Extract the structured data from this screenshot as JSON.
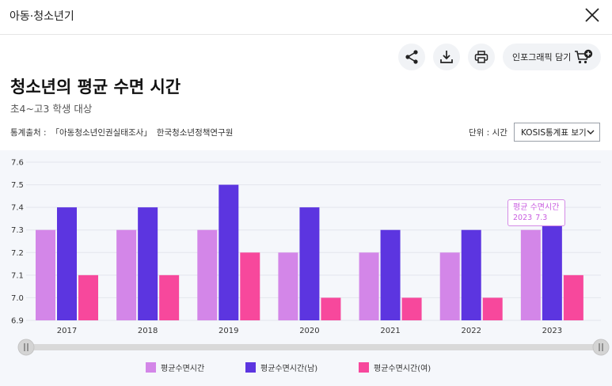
{
  "window": {
    "title": "아동·청소년기"
  },
  "toolbar": {
    "infographic_label": "인포그래픽 담기"
  },
  "page": {
    "title": "청소년의 평균 수면 시간",
    "subtitle": "초4~고3 학생 대상"
  },
  "source": {
    "label": "통계출처 :",
    "survey": "「아동청소년인권실태조사」",
    "agency": "한국청소년정책연구원"
  },
  "unit": "단위 : 시간",
  "kosis": {
    "selected": "KOSIS통계표 보기"
  },
  "tooltip": {
    "title": "평균 수면시간",
    "year": "2023",
    "value": "7.3"
  },
  "colors": {
    "total": "#d386e8",
    "male": "#5c35e0",
    "female": "#f7489c",
    "background": "#f5f7fb"
  },
  "icons": [
    "share-icon",
    "download-icon",
    "print-icon",
    "cart-plus-icon",
    "close-icon",
    "chevron-down-icon",
    "slider-handle-icon"
  ],
  "chart_data": {
    "type": "bar",
    "categories": [
      "2017",
      "2018",
      "2019",
      "2020",
      "2021",
      "2022",
      "2023"
    ],
    "series": [
      {
        "name": "평균수면시간",
        "color": "#d386e8",
        "values": [
          7.3,
          7.3,
          7.3,
          7.2,
          7.2,
          7.2,
          7.3
        ]
      },
      {
        "name": "평균수면시간(남)",
        "color": "#5c35e0",
        "values": [
          7.4,
          7.4,
          7.5,
          7.4,
          7.3,
          7.3,
          7.4
        ]
      },
      {
        "name": "평균수면시간(여)",
        "color": "#f7489c",
        "values": [
          7.1,
          7.1,
          7.2,
          7.0,
          7.0,
          7.0,
          7.1
        ]
      }
    ],
    "yticks": [
      "6.9",
      "7.0",
      "7.1",
      "7.2",
      "7.3",
      "7.4",
      "7.5",
      "7.6"
    ],
    "ylim": [
      6.9,
      7.6
    ],
    "grid": true,
    "legend_position": "bottom"
  }
}
